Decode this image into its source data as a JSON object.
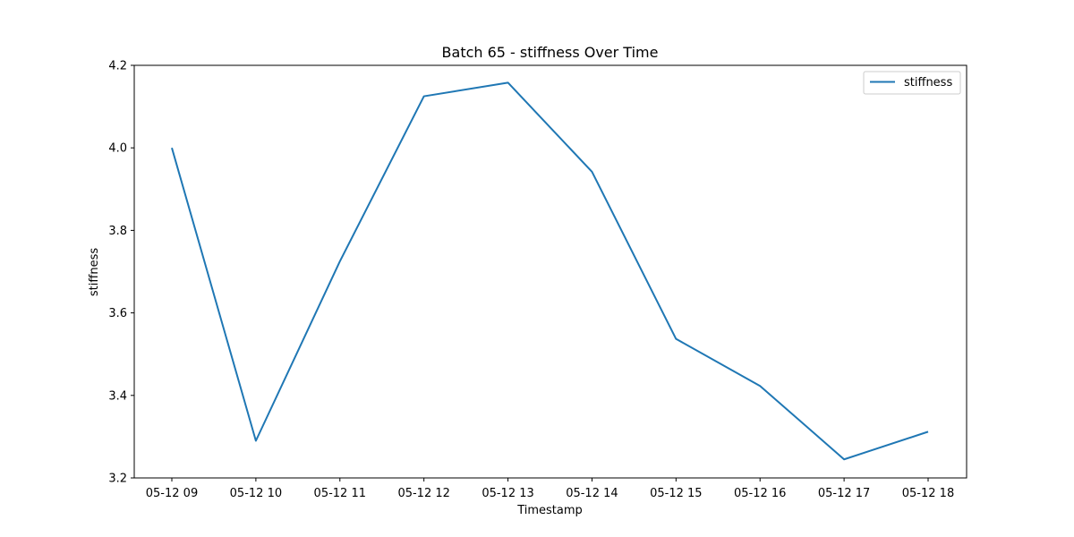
{
  "chart_data": {
    "type": "line",
    "title": "Batch 65 - stiffness Over Time",
    "xlabel": "Timestamp",
    "ylabel": "stiffness",
    "categories": [
      "05-12 09",
      "05-12 10",
      "05-12 11",
      "05-12 12",
      "05-12 13",
      "05-12 14",
      "05-12 15",
      "05-12 16",
      "05-12 17",
      "05-12 18"
    ],
    "series": [
      {
        "name": "stiffness",
        "color": "#1f77b4",
        "values": [
          4.0,
          3.29,
          3.725,
          4.125,
          4.158,
          3.942,
          3.537,
          3.423,
          3.245,
          3.312
        ]
      }
    ],
    "ylim": [
      3.2,
      4.2
    ],
    "yticks": [
      "3.2",
      "3.4",
      "3.6",
      "3.8",
      "4.0",
      "4.2"
    ],
    "ytick_values": [
      3.2,
      3.4,
      3.6,
      3.8,
      4.0,
      4.2
    ],
    "grid": false,
    "legend": "top-right"
  }
}
